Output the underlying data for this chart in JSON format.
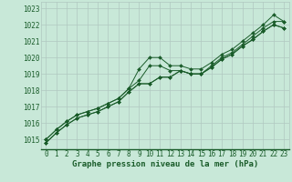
{
  "background_color": "#c8e8d8",
  "plot_bg_color": "#c8e8d8",
  "grid_color": "#b0c8c0",
  "line_color": "#1a5c2a",
  "marker_color": "#1a5c2a",
  "x_values": [
    0,
    1,
    2,
    3,
    4,
    5,
    6,
    7,
    8,
    9,
    10,
    11,
    12,
    13,
    14,
    15,
    16,
    17,
    18,
    19,
    20,
    21,
    22,
    23
  ],
  "series": [
    [
      1015.0,
      1015.6,
      1016.1,
      1016.5,
      1016.7,
      1016.9,
      1017.2,
      1017.5,
      1018.1,
      1019.3,
      1020.0,
      1020.0,
      1019.5,
      1019.5,
      1019.3,
      1019.3,
      1019.7,
      1020.2,
      1020.5,
      1021.0,
      1021.5,
      1022.0,
      1022.6,
      1022.2
    ],
    [
      1015.0,
      1015.6,
      1016.1,
      1016.5,
      1016.7,
      1016.9,
      1017.2,
      1017.5,
      1018.1,
      1018.6,
      1019.5,
      1019.5,
      1019.2,
      1019.2,
      1019.0,
      1019.0,
      1019.5,
      1020.0,
      1020.3,
      1020.8,
      1021.3,
      1021.8,
      1022.2,
      1022.2
    ],
    [
      1014.8,
      1015.4,
      1015.9,
      1016.3,
      1016.5,
      1016.7,
      1017.0,
      1017.3,
      1017.9,
      1018.4,
      1018.4,
      1018.8,
      1018.8,
      1019.2,
      1019.0,
      1019.0,
      1019.4,
      1019.9,
      1020.2,
      1020.7,
      1021.1,
      1021.6,
      1022.0,
      1021.8
    ],
    [
      1014.8,
      1015.4,
      1015.9,
      1016.3,
      1016.5,
      1016.7,
      1017.0,
      1017.3,
      1017.9,
      1018.4,
      1018.4,
      1018.8,
      1018.8,
      1019.2,
      1019.0,
      1019.0,
      1019.4,
      1019.9,
      1020.2,
      1020.7,
      1021.1,
      1021.6,
      1022.0,
      1021.8
    ]
  ],
  "ylim": [
    1014.4,
    1023.4
  ],
  "yticks": [
    1015,
    1016,
    1017,
    1018,
    1019,
    1020,
    1021,
    1022,
    1023
  ],
  "xlim": [
    -0.5,
    23.5
  ],
  "xticks": [
    0,
    1,
    2,
    3,
    4,
    5,
    6,
    7,
    8,
    9,
    10,
    11,
    12,
    13,
    14,
    15,
    16,
    17,
    18,
    19,
    20,
    21,
    22,
    23
  ],
  "xlabel": "Graphe pression niveau de la mer (hPa)",
  "tick_fontsize": 5.5,
  "label_fontsize": 6.5
}
